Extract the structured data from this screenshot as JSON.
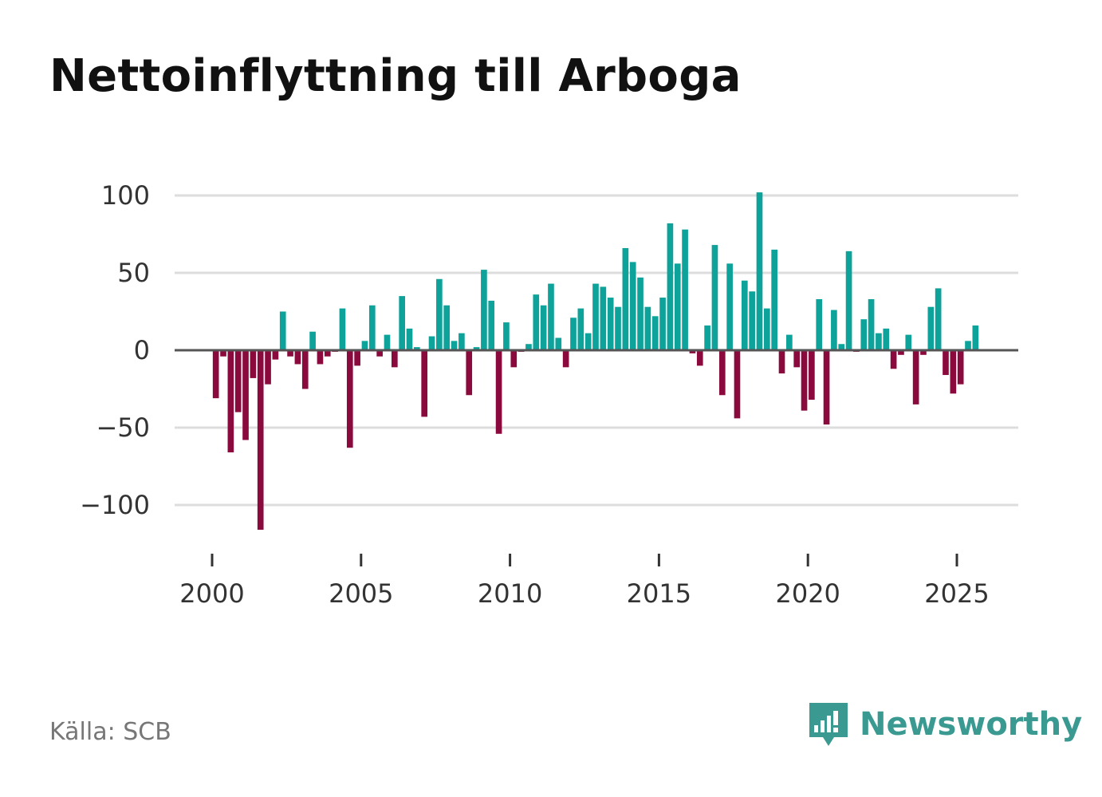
{
  "title": "Nettoinflyttning till Arboga",
  "source": "Källa: SCB",
  "brand": {
    "name": "Newsworthy",
    "icon": "newsworthy-logo-icon"
  },
  "colors": {
    "positive": "#0da29a",
    "negative": "#8b0a3e",
    "grid": "#dddddd",
    "zero_line": "#555555"
  },
  "chart_data": {
    "type": "bar",
    "title": "Nettoinflyttning till Arboga",
    "xlabel": "",
    "ylabel": "",
    "ylim": [
      -120,
      108
    ],
    "xlim": [
      1999.5,
      2027
    ],
    "y_ticks": [
      100,
      50,
      0,
      -50,
      -100
    ],
    "y_tick_labels": [
      "100",
      "50",
      "0",
      "−50",
      "−100"
    ],
    "x_ticks": [
      2000,
      2005,
      2010,
      2015,
      2020,
      2025
    ],
    "x_tick_labels": [
      "2000",
      "2005",
      "2010",
      "2015",
      "2020",
      "2025"
    ],
    "grid": true,
    "frequency": "quarterly",
    "start": "2000Q1",
    "values": [
      -31,
      -4,
      -66,
      -40,
      -58,
      -18,
      -116,
      -22,
      -6,
      25,
      -4,
      -9,
      -25,
      12,
      -9,
      -4,
      -1,
      27,
      -63,
      -10,
      6,
      29,
      -4,
      10,
      -11,
      35,
      14,
      2,
      -43,
      9,
      46,
      29,
      6,
      11,
      -29,
      2,
      52,
      32,
      -54,
      18,
      -11,
      -1,
      4,
      36,
      29,
      43,
      8,
      -11,
      21,
      27,
      11,
      43,
      41,
      34,
      28,
      66,
      57,
      47,
      28,
      22,
      34,
      82,
      56,
      78,
      -2,
      -10,
      16,
      68,
      -29,
      56,
      -44,
      45,
      38,
      102,
      27,
      65,
      -15,
      10,
      -11,
      -39,
      -32,
      33,
      -48,
      26,
      4,
      64,
      -1,
      20,
      33,
      11,
      14,
      -12,
      -3,
      10,
      -35,
      -3,
      28,
      40,
      -16,
      -28,
      -22,
      6,
      16
    ]
  }
}
